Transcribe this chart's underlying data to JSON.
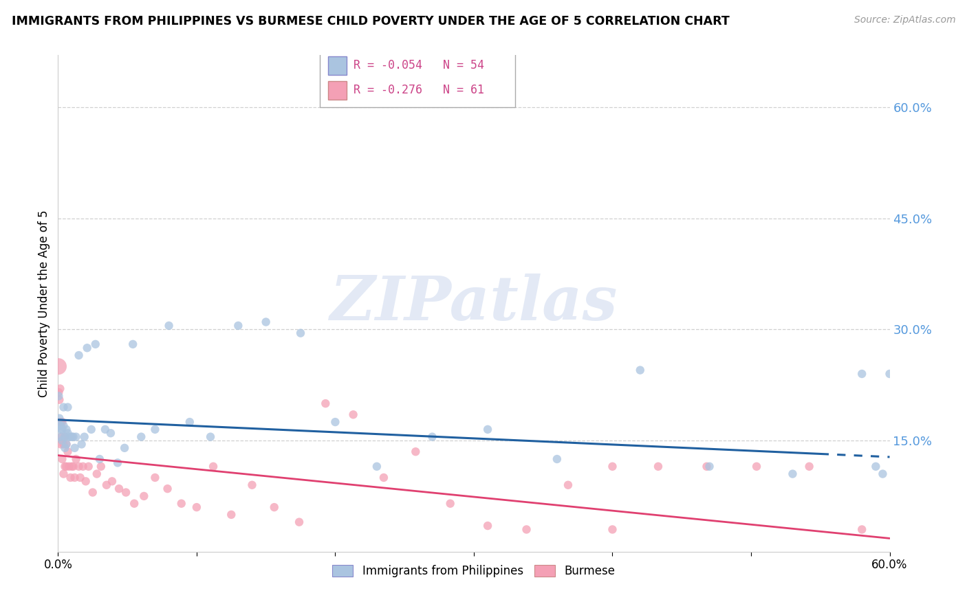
{
  "title": "IMMIGRANTS FROM PHILIPPINES VS BURMESE CHILD POVERTY UNDER THE AGE OF 5 CORRELATION CHART",
  "source": "Source: ZipAtlas.com",
  "ylabel": "Child Poverty Under the Age of 5",
  "right_yticks": [
    0.0,
    0.15,
    0.3,
    0.45,
    0.6
  ],
  "right_yticklabels": [
    "",
    "15.0%",
    "30.0%",
    "45.0%",
    "60.0%"
  ],
  "xlim": [
    0.0,
    0.6
  ],
  "ylim": [
    0.0,
    0.67
  ],
  "philippines_color": "#aac4e0",
  "burmese_color": "#f4a0b5",
  "philippines_R": -0.054,
  "philippines_N": 54,
  "burmese_R": -0.276,
  "burmese_N": 61,
  "trend_philippines_color": "#2060a0",
  "trend_burmese_color": "#e04070",
  "watermark": "ZIPatlas",
  "legend_label_philippines": "Immigrants from Philippines",
  "legend_label_burmese": "Burmese",
  "philippines_x": [
    0.0005,
    0.001,
    0.001,
    0.002,
    0.002,
    0.002,
    0.003,
    0.003,
    0.004,
    0.004,
    0.005,
    0.005,
    0.006,
    0.006,
    0.007,
    0.007,
    0.008,
    0.009,
    0.01,
    0.011,
    0.012,
    0.013,
    0.015,
    0.017,
    0.019,
    0.021,
    0.024,
    0.027,
    0.03,
    0.034,
    0.038,
    0.043,
    0.048,
    0.054,
    0.06,
    0.07,
    0.08,
    0.095,
    0.11,
    0.13,
    0.15,
    0.175,
    0.2,
    0.23,
    0.27,
    0.31,
    0.36,
    0.42,
    0.47,
    0.53,
    0.58,
    0.59,
    0.595,
    0.6
  ],
  "philippines_y": [
    0.21,
    0.18,
    0.17,
    0.165,
    0.17,
    0.155,
    0.15,
    0.165,
    0.17,
    0.195,
    0.155,
    0.14,
    0.165,
    0.145,
    0.195,
    0.16,
    0.155,
    0.155,
    0.155,
    0.155,
    0.14,
    0.155,
    0.265,
    0.145,
    0.155,
    0.275,
    0.165,
    0.28,
    0.125,
    0.165,
    0.16,
    0.12,
    0.14,
    0.28,
    0.155,
    0.165,
    0.305,
    0.175,
    0.155,
    0.305,
    0.31,
    0.295,
    0.175,
    0.115,
    0.155,
    0.165,
    0.125,
    0.245,
    0.115,
    0.105,
    0.24,
    0.115,
    0.105,
    0.24
  ],
  "philippines_sizes": [
    80,
    80,
    80,
    80,
    80,
    80,
    80,
    80,
    80,
    80,
    80,
    80,
    80,
    80,
    80,
    80,
    80,
    80,
    80,
    80,
    80,
    80,
    80,
    80,
    80,
    80,
    80,
    80,
    80,
    80,
    80,
    80,
    80,
    80,
    80,
    80,
    80,
    80,
    80,
    80,
    80,
    80,
    80,
    80,
    80,
    80,
    80,
    80,
    80,
    80,
    80,
    80,
    80,
    80
  ],
  "burmese_x": [
    0.0003,
    0.0005,
    0.001,
    0.001,
    0.0015,
    0.002,
    0.002,
    0.0025,
    0.003,
    0.003,
    0.004,
    0.004,
    0.005,
    0.005,
    0.006,
    0.006,
    0.007,
    0.008,
    0.009,
    0.01,
    0.011,
    0.012,
    0.013,
    0.015,
    0.016,
    0.018,
    0.02,
    0.022,
    0.025,
    0.028,
    0.031,
    0.035,
    0.039,
    0.044,
    0.049,
    0.055,
    0.062,
    0.07,
    0.079,
    0.089,
    0.1,
    0.112,
    0.125,
    0.14,
    0.156,
    0.174,
    0.193,
    0.213,
    0.235,
    0.258,
    0.283,
    0.31,
    0.338,
    0.368,
    0.4,
    0.433,
    0.468,
    0.504,
    0.542,
    0.58,
    0.4
  ],
  "burmese_y": [
    0.25,
    0.215,
    0.205,
    0.175,
    0.22,
    0.175,
    0.145,
    0.155,
    0.175,
    0.125,
    0.145,
    0.105,
    0.155,
    0.115,
    0.145,
    0.115,
    0.135,
    0.115,
    0.1,
    0.115,
    0.115,
    0.1,
    0.125,
    0.115,
    0.1,
    0.115,
    0.095,
    0.115,
    0.08,
    0.105,
    0.115,
    0.09,
    0.095,
    0.085,
    0.08,
    0.065,
    0.075,
    0.1,
    0.085,
    0.065,
    0.06,
    0.115,
    0.05,
    0.09,
    0.06,
    0.04,
    0.2,
    0.185,
    0.1,
    0.135,
    0.065,
    0.035,
    0.03,
    0.09,
    0.03,
    0.115,
    0.115,
    0.115,
    0.115,
    0.03,
    0.115
  ],
  "burmese_sizes": [
    300,
    80,
    80,
    80,
    80,
    80,
    80,
    80,
    80,
    80,
    80,
    80,
    80,
    80,
    80,
    80,
    80,
    80,
    80,
    80,
    80,
    80,
    80,
    80,
    80,
    80,
    80,
    80,
    80,
    80,
    80,
    80,
    80,
    80,
    80,
    80,
    80,
    80,
    80,
    80,
    80,
    80,
    80,
    80,
    80,
    80,
    80,
    80,
    80,
    80,
    80,
    80,
    80,
    80,
    80,
    80,
    80,
    80,
    80,
    80,
    80
  ]
}
